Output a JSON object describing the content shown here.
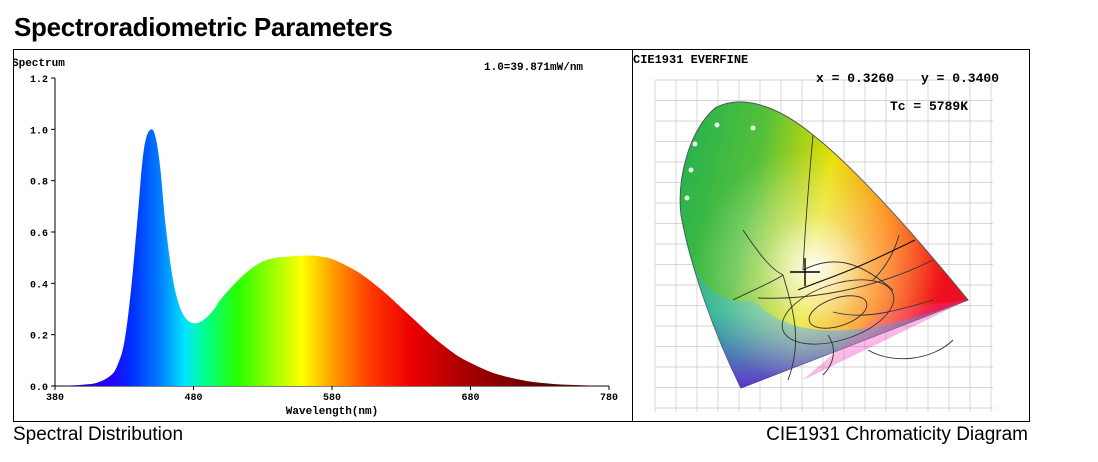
{
  "page_title": "Spectroradiometric Parameters",
  "spectrum": {
    "caption": "Spectral Distribution",
    "scale_note": "1.0=39.871mW/nm",
    "chart_data": {
      "type": "area",
      "title": "Spectrum",
      "xlabel": "Wavelength(nm)",
      "ylabel": "",
      "xlim": [
        380,
        780
      ],
      "ylim": [
        0,
        1.2
      ],
      "x_ticks": [
        "380",
        "480",
        "580",
        "680",
        "780"
      ],
      "y_ticks": [
        "0.0",
        "0.2",
        "0.4",
        "0.6",
        "0.8",
        "1.0",
        "1.2"
      ],
      "fill": "wavelength-rainbow",
      "x": [
        380,
        390,
        400,
        410,
        420,
        425,
        430,
        435,
        440,
        443,
        446,
        450,
        453,
        456,
        460,
        465,
        470,
        475,
        480,
        485,
        490,
        495,
        500,
        510,
        520,
        530,
        540,
        550,
        560,
        565,
        570,
        580,
        590,
        600,
        610,
        620,
        630,
        640,
        650,
        660,
        670,
        680,
        690,
        700,
        720,
        740,
        760,
        780
      ],
      "y": [
        0.0,
        0.002,
        0.005,
        0.012,
        0.04,
        0.08,
        0.17,
        0.38,
        0.68,
        0.87,
        0.97,
        1.0,
        0.96,
        0.85,
        0.62,
        0.42,
        0.31,
        0.26,
        0.245,
        0.25,
        0.27,
        0.3,
        0.34,
        0.4,
        0.45,
        0.485,
        0.5,
        0.505,
        0.508,
        0.508,
        0.506,
        0.495,
        0.47,
        0.44,
        0.4,
        0.355,
        0.305,
        0.255,
        0.205,
        0.16,
        0.12,
        0.09,
        0.065,
        0.045,
        0.02,
        0.008,
        0.003,
        0.001
      ]
    }
  },
  "cie": {
    "caption": "CIE1931 Chromaticity Diagram",
    "brand_label": "CIE1931 EVERFINE",
    "x_label": "x = 0.3260",
    "y_label": "y = 0.3400",
    "tc_label": "Tc = 5789K",
    "chart_data": {
      "type": "scatter",
      "title": "CIE1931 EVERFINE",
      "xlim": [
        0,
        0.8
      ],
      "ylim": [
        0,
        0.9
      ],
      "points": [
        {
          "x": 0.326,
          "y": 0.34,
          "label": "Tc = 5789K"
        }
      ],
      "grid": true
    }
  }
}
